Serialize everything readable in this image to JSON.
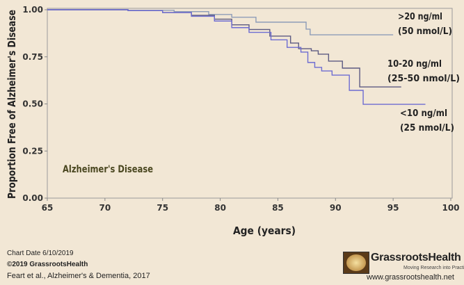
{
  "chart_data": {
    "type": "line",
    "step": true,
    "xlabel": "Age (years)",
    "ylabel": "Proportion Free of Alzheimer's Disease",
    "xlim": [
      65,
      100
    ],
    "ylim": [
      0,
      1
    ],
    "xticks": [
      "65",
      "70",
      "75",
      "80",
      "85",
      "90",
      "95",
      "100"
    ],
    "yticks": [
      "0.00",
      "0.25",
      "0.50",
      "0.75",
      "1.00"
    ],
    "annotation": "Alzheimer's Disease",
    "grid": false,
    "series": [
      {
        "name": ">20 ng/ml",
        "name2": "(50 nmol/L)",
        "color": "#8d9cb8",
        "x": [
          65,
          72,
          76,
          79,
          81,
          83.1,
          87.45,
          87.8,
          95
        ],
        "y": [
          1.0,
          0.997,
          0.99,
          0.975,
          0.96,
          0.934,
          0.897,
          0.867,
          0.867
        ]
      },
      {
        "name": "10-20 ng/ml",
        "name2": "(25-50 nmol/L)",
        "color": "#5c5a82",
        "x": [
          65,
          72,
          75,
          77.5,
          79.5,
          81,
          82.5,
          84.3,
          86.1,
          86.8,
          87.9,
          88.5,
          89.4,
          90.6,
          92.1,
          95.7
        ],
        "y": [
          1.0,
          0.995,
          0.985,
          0.97,
          0.95,
          0.92,
          0.895,
          0.86,
          0.823,
          0.793,
          0.782,
          0.764,
          0.727,
          0.69,
          0.59,
          0.59
        ]
      },
      {
        "name": "<10 ng/ml",
        "name2": "(25 nmol/L)",
        "color": "#6d6cd2",
        "x": [
          65,
          72,
          75,
          77.5,
          79.5,
          81,
          82.5,
          84.4,
          85.8,
          87.0,
          87.6,
          88.2,
          88.8,
          89.7,
          91.2,
          92.4,
          97.8
        ],
        "y": [
          1.0,
          0.995,
          0.985,
          0.965,
          0.94,
          0.905,
          0.88,
          0.84,
          0.8,
          0.775,
          0.72,
          0.694,
          0.675,
          0.653,
          0.572,
          0.498,
          0.498
        ]
      }
    ]
  },
  "footer": {
    "chart_date": "Chart Date 6/10/2019",
    "copyright": "©2019 GrassrootsHealth",
    "source": "Feart et al., Alzheimer's & Dementia, 2017"
  },
  "brand": {
    "name": "GrassrootsHealth",
    "tagline": "Moving Research into Practice",
    "url": "www.grassrootshealth.net"
  }
}
